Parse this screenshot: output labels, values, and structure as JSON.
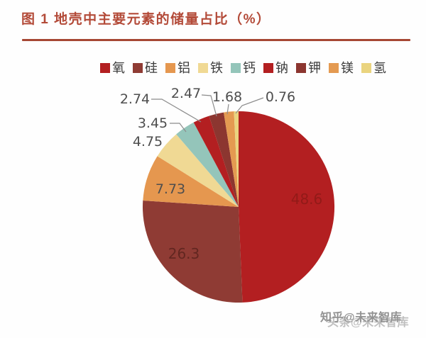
{
  "figure": {
    "title": "图 1 地壳中主要元素的储量占比（%）"
  },
  "watermark": {
    "line1": "知乎@未来智库",
    "line2": "头条@未来智库"
  },
  "chart_data": {
    "type": "pie",
    "title": "地壳中主要元素的储量占比",
    "unit": "%",
    "start_angle": "12-o-clock",
    "direction": "clockwise",
    "legend_position": "top",
    "grid": false,
    "series": [
      {
        "label": "氧",
        "value": 48.6,
        "display": "48.6",
        "color": "#b31f21"
      },
      {
        "label": "硅",
        "value": 26.3,
        "display": "26.3",
        "color": "#8f3b34"
      },
      {
        "label": "铝",
        "value": 7.73,
        "display": "7.73",
        "color": "#e5974f"
      },
      {
        "label": "铁",
        "value": 4.75,
        "display": "4.75",
        "color": "#f0d994"
      },
      {
        "label": "钙",
        "value": 3.45,
        "display": "3.45",
        "color": "#94c5ba"
      },
      {
        "label": "钠",
        "value": 2.74,
        "display": "2.74",
        "color": "#b31f21"
      },
      {
        "label": "钾",
        "value": 2.47,
        "display": "2.47",
        "color": "#8c3630"
      },
      {
        "label": "镁",
        "value": 1.68,
        "display": "1.68",
        "color": "#e49a51"
      },
      {
        "label": "氢",
        "value": 0.76,
        "display": "0.76",
        "color": "#ead47f"
      }
    ],
    "colors": {
      "title": "#b34a38",
      "divider": "#a64733",
      "value_label_gray": "#4e4e4e",
      "leader_line": "#8c8c8c"
    }
  }
}
